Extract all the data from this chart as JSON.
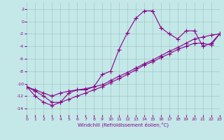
{
  "xlabel": "Windchill (Refroidissement éolien,°C)",
  "bg_color": "#c4e8e8",
  "grid_color": "#a0c8c8",
  "line_color": "#880088",
  "xlim": [
    0,
    23
  ],
  "ylim": [
    -15,
    3
  ],
  "xticks": [
    0,
    1,
    2,
    3,
    4,
    5,
    6,
    7,
    8,
    9,
    10,
    11,
    12,
    13,
    14,
    15,
    16,
    17,
    18,
    19,
    20,
    21,
    22,
    23
  ],
  "yticks": [
    -14,
    -12,
    -10,
    -8,
    -6,
    -4,
    -2,
    0,
    2
  ],
  "series1_x": [
    0,
    1,
    2,
    3,
    4,
    5,
    6,
    7,
    8,
    9,
    10,
    11,
    12,
    13,
    14,
    15,
    16,
    17,
    18,
    19,
    20,
    21,
    22,
    23
  ],
  "series1_y": [
    -10.5,
    -12,
    -13,
    -13.5,
    -13,
    -11.5,
    -11,
    -11,
    -10.5,
    -8.5,
    -8,
    -4.5,
    -1.8,
    0.5,
    1.7,
    1.7,
    -1.0,
    -2.0,
    -2.8,
    -1.5,
    -1.5,
    -4.0,
    -3.5,
    -2.0
  ],
  "series2_x": [
    0,
    1,
    2,
    3,
    4,
    5,
    6,
    7,
    8,
    9,
    10,
    11,
    12,
    13,
    14,
    15,
    16,
    17,
    18,
    19,
    20,
    21,
    22,
    23
  ],
  "series2_y": [
    -10.5,
    -11.0,
    -11.5,
    -12.0,
    -11.5,
    -11.2,
    -11.0,
    -10.8,
    -10.5,
    -10.2,
    -9.5,
    -8.8,
    -8.2,
    -7.5,
    -6.8,
    -6.2,
    -5.5,
    -4.8,
    -4.2,
    -3.5,
    -2.8,
    -2.5,
    -2.2,
    -2.0
  ],
  "series3_x": [
    0,
    1,
    2,
    3,
    4,
    5,
    6,
    7,
    8,
    9,
    10,
    11,
    12,
    13,
    14,
    15,
    16,
    17,
    18,
    19,
    20,
    21,
    22,
    23
  ],
  "series3_y": [
    -10.5,
    -11.2,
    -12.0,
    -13.0,
    -13.0,
    -12.5,
    -12.0,
    -11.5,
    -11.0,
    -10.5,
    -9.8,
    -9.2,
    -8.5,
    -7.8,
    -7.0,
    -6.5,
    -5.8,
    -5.2,
    -4.5,
    -4.0,
    -3.5,
    -3.5,
    -3.8,
    -2.0
  ],
  "marker_size": 4,
  "line_width": 0.8
}
